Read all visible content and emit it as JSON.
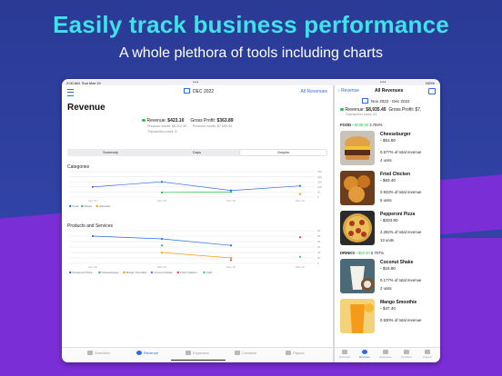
{
  "promo": {
    "headline": "Easily track business performance",
    "subhead": "A whole plethora of tools including charts"
  },
  "status": {
    "time": "2:00 AM",
    "date": "Sun Mar 19",
    "battery": "100%"
  },
  "left": {
    "date_range": "DEC 2022",
    "filter_label": "All Revenues",
    "title": "Revenue",
    "revenue_label": "Revenue: ",
    "revenue_value": "$423.10",
    "gross_profit_label": "Gross Profit: ",
    "gross_profit_value": "$363.89",
    "previous_month_revenue": "Previous month: $8,312.35",
    "previous_month_profit": "Previous month: $7,590.93",
    "transaction_count": "Transaction count: 8",
    "segments": [
      "Summary",
      "Days",
      "Graphs"
    ],
    "selected_segment": "Graphs",
    "categories_title": "Categories",
    "products_title": "Products and Services",
    "tabs": [
      "Overview",
      "Revenue",
      "Expenses",
      "Contacts",
      "Payout"
    ],
    "selected_tab": "Revenue"
  },
  "chart_data": [
    {
      "type": "line",
      "title": "Categories",
      "x": [
        "Dec 10",
        "Dec 16",
        "Dec 19",
        "Dec 12"
      ],
      "ylim": [
        0,
        250
      ],
      "yticks": [
        "250",
        "200",
        "150",
        "100",
        "50",
        "0"
      ],
      "series": [
        {
          "name": "Food",
          "color": "#2e6be0",
          "values": [
            100,
            150,
            65,
            110
          ]
        },
        {
          "name": "Drinks",
          "color": "#27c24c",
          "values": [
            null,
            45,
            50,
            null
          ]
        },
        {
          "name": "Appetizer",
          "color": "#f59e0b",
          "values": [
            null,
            null,
            null,
            30
          ]
        }
      ]
    },
    {
      "type": "line",
      "title": "Products and Services",
      "x": [
        "Dec 10",
        "Dec 16",
        "Dec 19",
        "Dec 12"
      ],
      "ylim": [
        0,
        60
      ],
      "yticks": [
        "60",
        "50",
        "40",
        "30",
        "20",
        "10",
        "0"
      ],
      "series": [
        {
          "name": "Pepperoni Pizza",
          "color": "#2e6be0",
          "values": [
            50,
            45,
            33,
            null
          ]
        },
        {
          "name": "Cheeseburger",
          "color": "#27c24c",
          "values": [
            null,
            33,
            null,
            null
          ]
        },
        {
          "name": "Mango Smoothie",
          "color": "#f59e0b",
          "values": [
            null,
            20,
            10,
            null
          ]
        },
        {
          "name": "Coconut Shake",
          "color": "#8b5cf6",
          "values": [
            null,
            null,
            6,
            null
          ]
        },
        {
          "name": "Fried Chicken",
          "color": "#ef4444",
          "values": [
            null,
            null,
            null,
            48
          ]
        },
        {
          "name": "Chai",
          "color": "#2ec4b6",
          "values": [
            null,
            null,
            null,
            12
          ]
        }
      ]
    }
  ],
  "right": {
    "back_label": "Revenue",
    "title": "All Revenues",
    "date_range": "Nov 2022 - Dec 2022",
    "revenue_label": "Revenue: ",
    "revenue_value": "$8,935.45",
    "gross_profit_label": "Gross Profit: $7,",
    "transaction_count": "Transaction count: 61",
    "food_header": "FOOD",
    "food_total": "• $338.90",
    "food_pct": "3.793%",
    "drinks_header": "DRINKS",
    "drinks_total": "• $63.20",
    "drinks_pct": "0.707%",
    "items": [
      {
        "name": "Cheeseburger",
        "price": "$51.60",
        "pct": "0.577% of total revenue",
        "units": "4 units"
      },
      {
        "name": "Fried Chicken",
        "price": "$83.40",
        "pct": "0.933% of total revenue",
        "units": "6 units"
      },
      {
        "name": "Pepperoni Pizza",
        "price": "$203.90",
        "pct": "2.282% of total revenue",
        "units": "13 units"
      },
      {
        "name": "Coconut Shake",
        "price": "$15.80",
        "pct": "0.177% of total revenue",
        "units": "2 units"
      },
      {
        "name": "Mango Smoothie",
        "price": "$47.40",
        "pct": "0.530% of total revenue",
        "units": ""
      }
    ],
    "tabs": [
      "Overview",
      "Revenue",
      "Expenses",
      "Contacts",
      "Payout"
    ]
  }
}
